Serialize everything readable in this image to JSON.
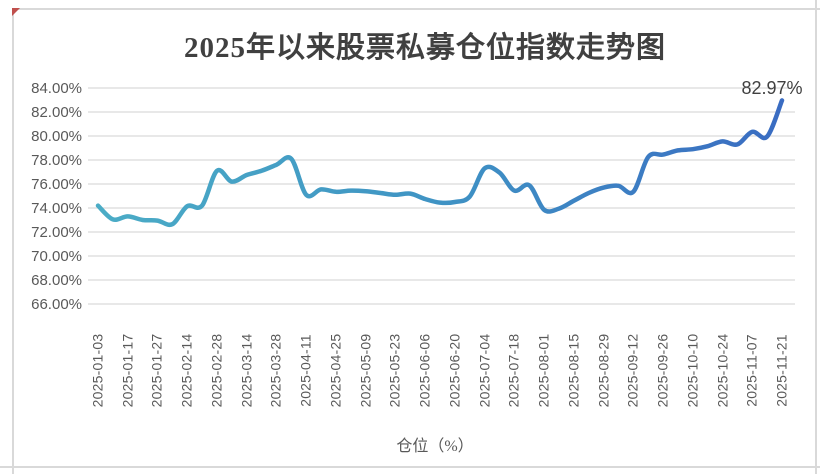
{
  "chart_data": {
    "type": "line",
    "title": "2025年以来股票私募仓位指数走势图",
    "legend": {
      "label": "仓位（%）",
      "position": "bottom"
    },
    "end_label": "82.97%",
    "grid": true,
    "y_axis": {
      "min": 66,
      "max": 84,
      "step": 2
    },
    "y_tick_labels": [
      "84.00%",
      "82.00%",
      "80.00%",
      "78.00%",
      "76.00%",
      "74.00%",
      "72.00%",
      "70.00%",
      "68.00%",
      "66.00%"
    ],
    "x_tick_labels": [
      "2025-01-03",
      "2025-01-17",
      "2025-01-27",
      "2025-02-14",
      "2025-02-28",
      "2025-03-14",
      "2025-03-28",
      "2025-04-11",
      "2025-04-25",
      "2025-05-09",
      "2025-05-23",
      "2025-06-06",
      "2025-06-20",
      "2025-07-04",
      "2025-07-18",
      "2025-08-01",
      "2025-08-15",
      "2025-08-29",
      "2025-09-12",
      "2025-09-26",
      "2025-10-10",
      "2025-10-24",
      "2025-11-07",
      "2025-11-21"
    ],
    "points_per_tick_interval": 2,
    "series": [
      {
        "name": "仓位（%）",
        "values": [
          74.2,
          73.05,
          73.3,
          73.0,
          72.95,
          72.65,
          74.15,
          74.2,
          77.1,
          76.2,
          76.75,
          77.1,
          77.6,
          78.1,
          75.1,
          75.55,
          75.35,
          75.45,
          75.4,
          75.25,
          75.1,
          75.2,
          74.75,
          74.45,
          74.5,
          74.95,
          77.3,
          76.95,
          75.45,
          75.9,
          73.85,
          73.95,
          74.6,
          75.25,
          75.7,
          75.85,
          75.35,
          78.25,
          78.45,
          78.8,
          78.9,
          79.15,
          79.55,
          79.3,
          80.35,
          79.95,
          82.97
        ]
      }
    ],
    "colors": {
      "line_gradient": [
        "#4BACC6",
        "#3F93C4",
        "#3A6CC2"
      ],
      "gridline": "#D9D9D9",
      "axis_text": "#595959",
      "title_text": "#404040"
    }
  }
}
